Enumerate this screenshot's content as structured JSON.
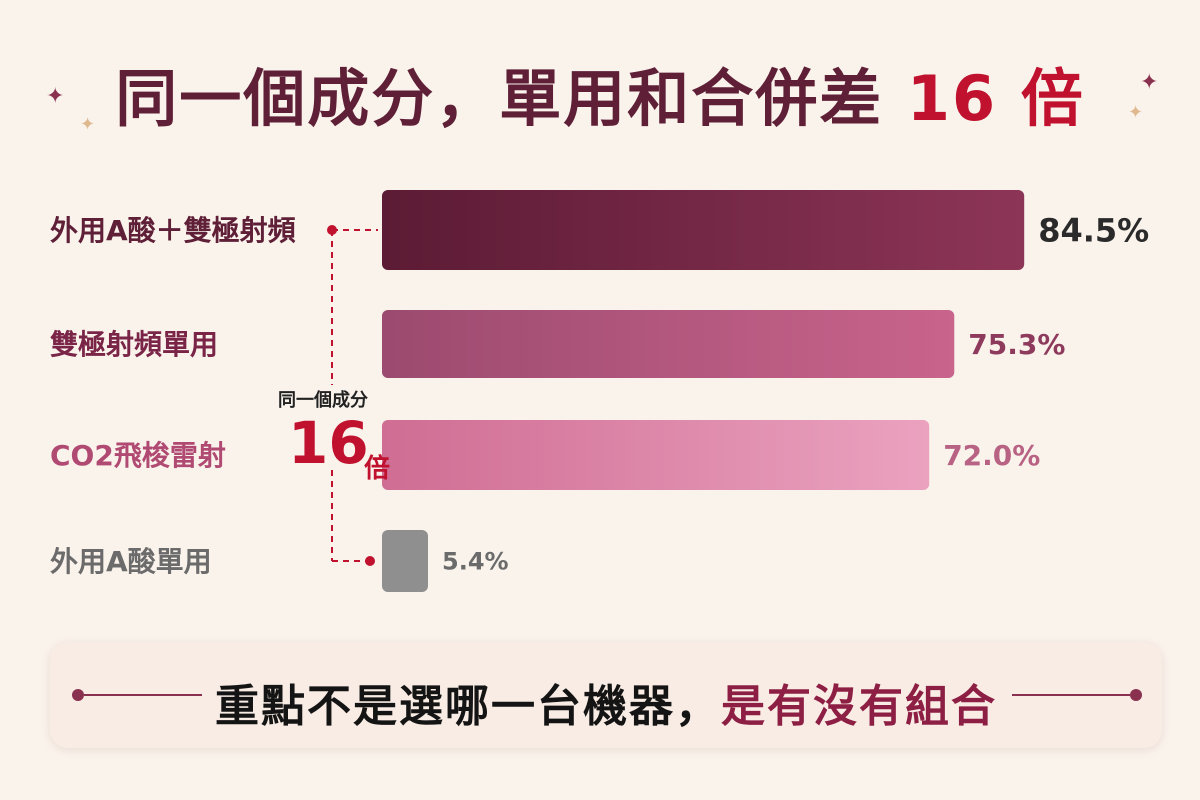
{
  "title": {
    "main": "同一個成分，單用和合併差",
    "accent": "16 倍"
  },
  "colors": {
    "title": "#5e1f37",
    "accent_red": "#c0122e",
    "bar1_start": "#5c1b34",
    "bar1_end": "#8d3557",
    "bar2_start": "#9c4a6f",
    "bar2_end": "#c9648c",
    "bar3_start": "#cf6d93",
    "bar3_end": "#eba2bf",
    "bar4": "#8f8f8f",
    "background": "#faf3ec"
  },
  "chart_data": {
    "type": "bar",
    "orientation": "horizontal",
    "categories": [
      "外用A酸＋雙極射頻",
      "雙極射頻單用",
      "CO2飛梭雷射",
      "外用A酸單用"
    ],
    "values": [
      84.5,
      75.3,
      72.0,
      5.4
    ],
    "value_labels": [
      "84.5%",
      "75.3%",
      "72.0%",
      "5.4%"
    ],
    "xlim": [
      0,
      100
    ]
  },
  "annotation": {
    "top": "同一個成分",
    "number": "16",
    "unit": "倍"
  },
  "footer": {
    "main": "重點不是選哪一台機器，",
    "accent": "是有沒有組合"
  }
}
